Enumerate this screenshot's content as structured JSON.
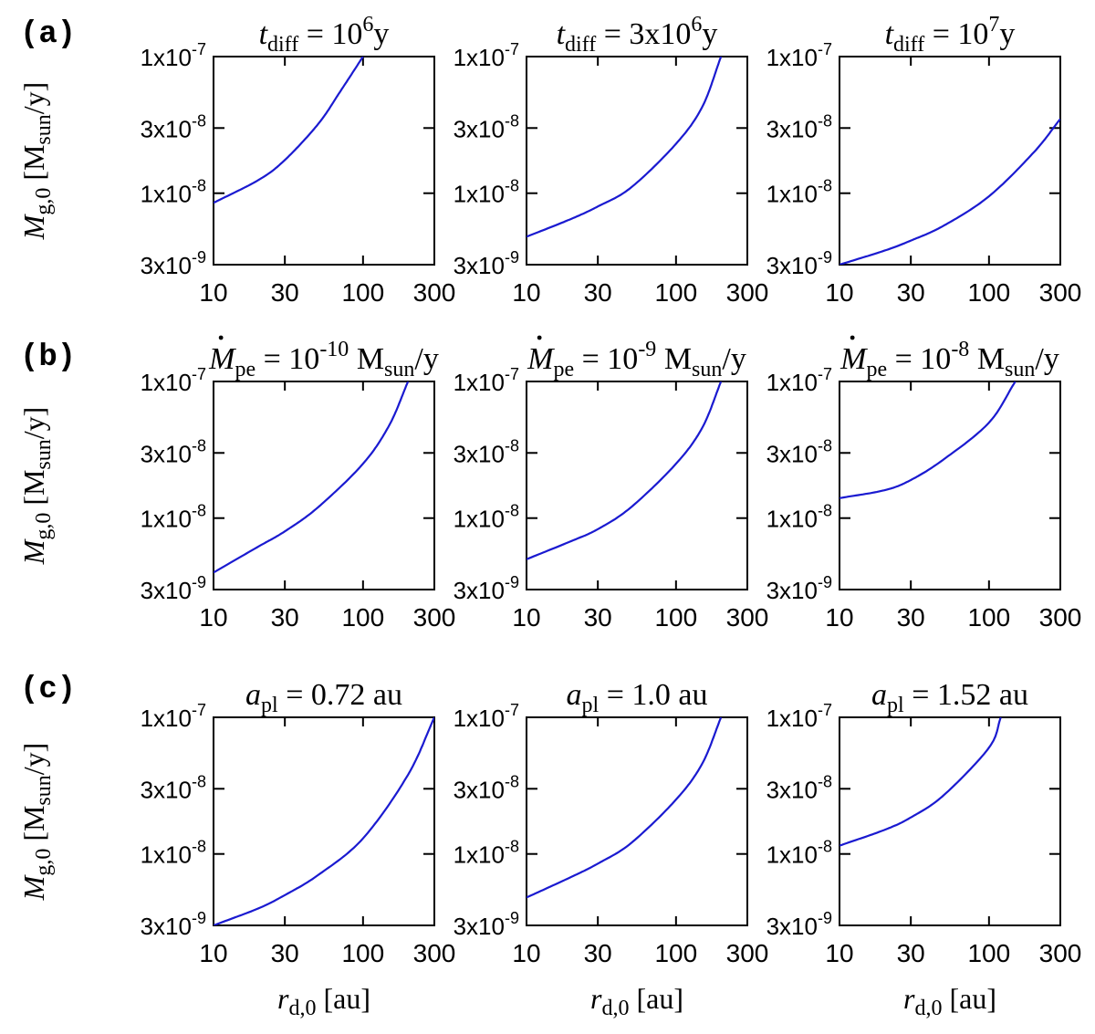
{
  "figure": {
    "row_labels": [
      "(a)",
      "(b)",
      "(c)"
    ],
    "ylabel": {
      "symbol": "M",
      "sub": "g,0",
      "unit_open": " [M",
      "unit_sub": "sun",
      "unit_close": "/y]"
    },
    "xlabel": {
      "symbol": "r",
      "sub": "d,0",
      "unit": " [au]"
    },
    "curve_color": "#1a1ad0"
  },
  "chart_data": [
    {
      "type": "line",
      "row": "a",
      "col": 0,
      "title": {
        "var": "t",
        "sub": "diff",
        "text": " = 10",
        "sup": "6",
        "tail": "y"
      },
      "x": [
        10,
        20,
        30,
        50,
        70,
        100
      ],
      "y": [
        8.5e-09,
        1.25e-08,
        1.75e-08,
        3.2e-08,
        5.5e-08,
        1e-07
      ],
      "xscale": "log",
      "yscale": "log",
      "xlim": [
        10,
        300
      ],
      "ylim": [
        3e-09,
        1e-07
      ],
      "xticks": [
        "10",
        "30",
        "100",
        "300"
      ],
      "yticks": [
        "1x10",
        "3x10",
        "1x10",
        "3x10"
      ],
      "ytick_exps": [
        "-7",
        "-8",
        "-8",
        "-9"
      ]
    },
    {
      "type": "line",
      "row": "a",
      "col": 1,
      "title": {
        "var": "t",
        "sub": "diff",
        "text": " = 3x10",
        "sup": "6",
        "tail": "y"
      },
      "x": [
        10,
        20,
        30,
        50,
        100,
        150,
        200
      ],
      "y": [
        4.8e-09,
        6.5e-09,
        8e-09,
        1.1e-08,
        2.3e-08,
        4.3e-08,
        1e-07
      ],
      "xscale": "log",
      "yscale": "log",
      "xlim": [
        10,
        300
      ],
      "ylim": [
        3e-09,
        1e-07
      ],
      "xticks": [
        "10",
        "30",
        "100",
        "300"
      ],
      "yticks": [
        "1x10",
        "3x10",
        "1x10",
        "3x10"
      ],
      "ytick_exps": [
        "-7",
        "-8",
        "-8",
        "-9"
      ]
    },
    {
      "type": "line",
      "row": "a",
      "col": 2,
      "title": {
        "var": "t",
        "sub": "diff",
        "text": " = 10",
        "sup": "7",
        "tail": "y"
      },
      "x": [
        10,
        20,
        30,
        50,
        100,
        200,
        300
      ],
      "y": [
        3e-09,
        3.8e-09,
        4.5e-09,
        5.8e-09,
        9.5e-09,
        2e-08,
        3.5e-08
      ],
      "xscale": "log",
      "yscale": "log",
      "xlim": [
        10,
        300
      ],
      "ylim": [
        3e-09,
        1e-07
      ],
      "xticks": [
        "10",
        "30",
        "100",
        "300"
      ],
      "yticks": [
        "1x10",
        "3x10",
        "1x10",
        "3x10"
      ],
      "ytick_exps": [
        "-7",
        "-8",
        "-8",
        "-9"
      ]
    },
    {
      "type": "line",
      "row": "b",
      "col": 0,
      "title": {
        "var": "M",
        "dot": true,
        "sub": "pe",
        "text": " = 10",
        "sup": "-10",
        "tail": " M",
        "tail_sub": "sun",
        "tail_end": "/y"
      },
      "x": [
        10,
        20,
        30,
        50,
        100,
        150,
        200
      ],
      "y": [
        4e-09,
        6.2e-09,
        8e-09,
        1.2e-08,
        2.5e-08,
        4.8e-08,
        1e-07
      ],
      "xscale": "log",
      "yscale": "log",
      "xlim": [
        10,
        300
      ],
      "ylim": [
        3e-09,
        1e-07
      ],
      "xticks": [
        "10",
        "30",
        "100",
        "300"
      ],
      "yticks": [
        "1x10",
        "3x10",
        "1x10",
        "3x10"
      ],
      "ytick_exps": [
        "-7",
        "-8",
        "-8",
        "-9"
      ]
    },
    {
      "type": "line",
      "row": "b",
      "col": 1,
      "title": {
        "var": "M",
        "dot": true,
        "sub": "pe",
        "text": " = 10",
        "sup": "-9",
        "tail": " M",
        "tail_sub": "sun",
        "tail_end": "/y"
      },
      "x": [
        10,
        20,
        30,
        50,
        100,
        150,
        200
      ],
      "y": [
        5e-09,
        6.8e-09,
        8.3e-09,
        1.2e-08,
        2.5e-08,
        4.6e-08,
        1e-07
      ],
      "xscale": "log",
      "yscale": "log",
      "xlim": [
        10,
        300
      ],
      "ylim": [
        3e-09,
        1e-07
      ],
      "xticks": [
        "10",
        "30",
        "100",
        "300"
      ],
      "yticks": [
        "1x10",
        "3x10",
        "1x10",
        "3x10"
      ],
      "ytick_exps": [
        "-7",
        "-8",
        "-8",
        "-9"
      ]
    },
    {
      "type": "line",
      "row": "b",
      "col": 2,
      "title": {
        "var": "M",
        "dot": true,
        "sub": "pe",
        "text": " = 10",
        "sup": "-8",
        "tail": " M",
        "tail_sub": "sun",
        "tail_end": "/y"
      },
      "x": [
        10,
        20,
        30,
        50,
        100,
        150
      ],
      "y": [
        1.4e-08,
        1.6e-08,
        1.9e-08,
        2.7e-08,
        5e-08,
        1e-07
      ],
      "xscale": "log",
      "yscale": "log",
      "xlim": [
        10,
        300
      ],
      "ylim": [
        3e-09,
        1e-07
      ],
      "xticks": [
        "10",
        "30",
        "100",
        "300"
      ],
      "yticks": [
        "1x10",
        "3x10",
        "1x10",
        "3x10"
      ],
      "ytick_exps": [
        "-7",
        "-8",
        "-8",
        "-9"
      ]
    },
    {
      "type": "line",
      "row": "c",
      "col": 0,
      "title": {
        "var": "a",
        "sub": "pl",
        "text": " = 0.72 au"
      },
      "x": [
        10,
        20,
        30,
        50,
        100,
        200,
        300
      ],
      "y": [
        3e-09,
        4e-09,
        5e-09,
        7e-09,
        1.3e-08,
        3.8e-08,
        1e-07
      ],
      "xscale": "log",
      "yscale": "log",
      "xlim": [
        10,
        300
      ],
      "ylim": [
        3e-09,
        1e-07
      ],
      "xticks": [
        "10",
        "30",
        "100",
        "300"
      ],
      "yticks": [
        "1x10",
        "3x10",
        "1x10",
        "3x10"
      ],
      "ytick_exps": [
        "-7",
        "-8",
        "-8",
        "-9"
      ]
    },
    {
      "type": "line",
      "row": "c",
      "col": 1,
      "title": {
        "var": "a",
        "sub": "pl",
        "text": " = 1.0 au"
      },
      "x": [
        10,
        20,
        30,
        50,
        100,
        150,
        200
      ],
      "y": [
        4.8e-09,
        6.8e-09,
        8.5e-09,
        1.2e-08,
        2.5e-08,
        4.6e-08,
        1e-07
      ],
      "xscale": "log",
      "yscale": "log",
      "xlim": [
        10,
        300
      ],
      "ylim": [
        3e-09,
        1e-07
      ],
      "xticks": [
        "10",
        "30",
        "100",
        "300"
      ],
      "yticks": [
        "1x10",
        "3x10",
        "1x10",
        "3x10"
      ],
      "ytick_exps": [
        "-7",
        "-8",
        "-8",
        "-9"
      ]
    },
    {
      "type": "line",
      "row": "c",
      "col": 2,
      "title": {
        "var": "a",
        "sub": "pl",
        "text": " = 1.52 au"
      },
      "x": [
        10,
        20,
        30,
        50,
        100,
        120
      ],
      "y": [
        1.15e-08,
        1.5e-08,
        1.85e-08,
        2.7e-08,
        6e-08,
        1e-07
      ],
      "xscale": "log",
      "yscale": "log",
      "xlim": [
        10,
        300
      ],
      "ylim": [
        3e-09,
        1e-07
      ],
      "xticks": [
        "10",
        "30",
        "100",
        "300"
      ],
      "yticks": [
        "1x10",
        "3x10",
        "1x10",
        "3x10"
      ],
      "ytick_exps": [
        "-7",
        "-8",
        "-8",
        "-9"
      ]
    }
  ]
}
